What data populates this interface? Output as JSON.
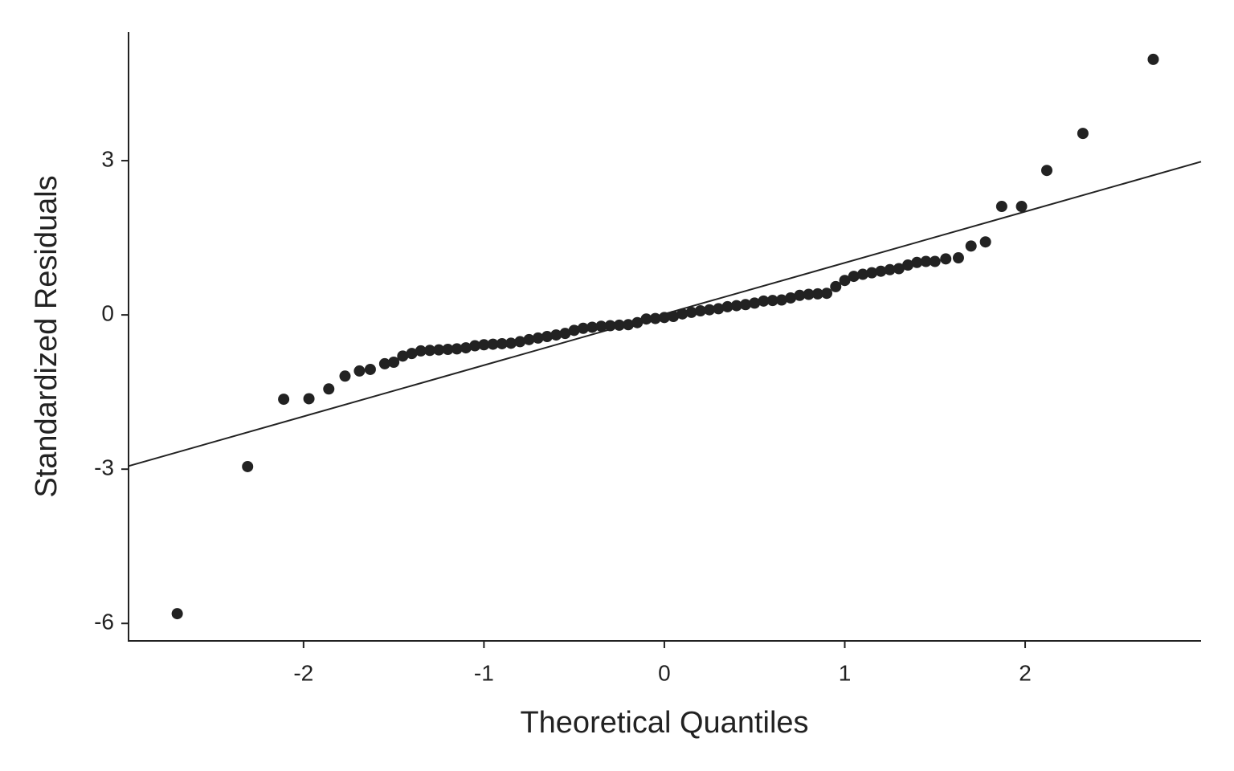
{
  "chart_data": {
    "type": "scatter",
    "xlabel": "Theoretical Quantiles",
    "ylabel": "Standardized Residuals",
    "color": "#222222",
    "xlim": [
      -2.97,
      2.975
    ],
    "ylim": [
      -6.34,
      5.5
    ],
    "xticks": [
      -2,
      -1,
      0,
      1,
      2
    ],
    "yticks": [
      -6,
      -3,
      0,
      3
    ],
    "grid": false,
    "x": [
      -2.7,
      -2.31,
      -2.11,
      -1.97,
      -1.86,
      -1.77,
      -1.69,
      -1.63,
      -1.55,
      -1.5,
      -1.45,
      -1.4,
      -1.35,
      -1.3,
      -1.25,
      -1.2,
      -1.15,
      -1.1,
      -1.05,
      -1.0,
      -0.95,
      -0.9,
      -0.85,
      -0.8,
      -0.75,
      -0.7,
      -0.65,
      -0.6,
      -0.55,
      -0.5,
      -0.45,
      -0.4,
      -0.35,
      -0.3,
      -0.25,
      -0.2,
      -0.15,
      -0.1,
      -0.05,
      0.0,
      0.05,
      0.1,
      0.15,
      0.2,
      0.25,
      0.3,
      0.35,
      0.4,
      0.45,
      0.5,
      0.55,
      0.6,
      0.65,
      0.7,
      0.75,
      0.8,
      0.85,
      0.9,
      0.95,
      1.0,
      1.05,
      1.1,
      1.15,
      1.2,
      1.25,
      1.3,
      1.35,
      1.4,
      1.45,
      1.5,
      1.56,
      1.63,
      1.7,
      1.78,
      1.87,
      1.98,
      2.12,
      2.32,
      2.71
    ],
    "values": [
      -5.81,
      -2.95,
      -1.64,
      -1.63,
      -1.44,
      -1.19,
      -1.09,
      -1.06,
      -0.95,
      -0.92,
      -0.8,
      -0.75,
      -0.7,
      -0.69,
      -0.68,
      -0.67,
      -0.66,
      -0.64,
      -0.6,
      -0.58,
      -0.57,
      -0.56,
      -0.55,
      -0.52,
      -0.48,
      -0.45,
      -0.42,
      -0.39,
      -0.36,
      -0.3,
      -0.26,
      -0.24,
      -0.22,
      -0.21,
      -0.2,
      -0.19,
      -0.15,
      -0.08,
      -0.07,
      -0.05,
      -0.03,
      0.02,
      0.05,
      0.08,
      0.1,
      0.12,
      0.16,
      0.18,
      0.2,
      0.23,
      0.27,
      0.28,
      0.29,
      0.33,
      0.38,
      0.4,
      0.41,
      0.42,
      0.55,
      0.67,
      0.75,
      0.79,
      0.82,
      0.85,
      0.88,
      0.9,
      0.97,
      1.02,
      1.04,
      1.04,
      1.09,
      1.11,
      1.34,
      1.42,
      2.11,
      2.11,
      2.81,
      3.53,
      4.97
    ],
    "reference_line": {
      "x": [
        -2.97,
        2.975
      ],
      "y": [
        -2.94,
        2.98
      ]
    }
  }
}
